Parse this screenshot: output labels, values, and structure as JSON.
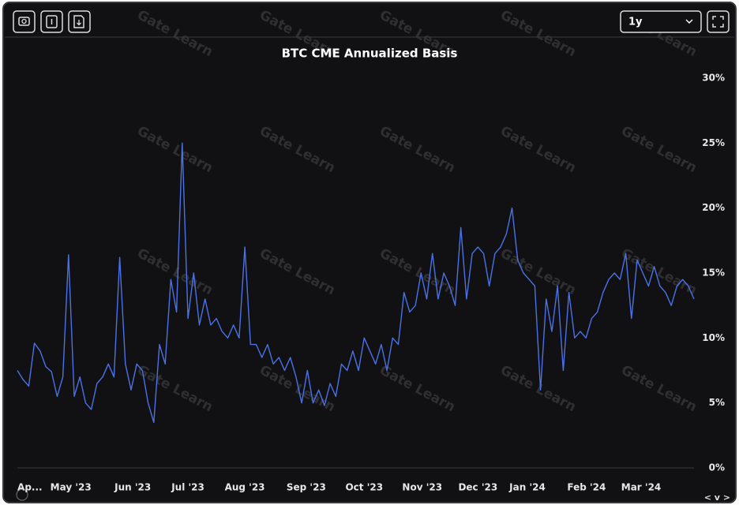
{
  "toolbar": {
    "range": "1y"
  },
  "watermark": "Gate Learn",
  "range_control": "< v >",
  "chart_data": {
    "type": "line",
    "title": "BTC CME Annualized Basis",
    "color": "#4a72e8",
    "values": [
      7.5,
      6.8,
      6.3,
      9.6,
      9.0,
      7.8,
      7.4,
      5.5,
      7.0,
      16.4,
      5.5,
      7.0,
      5.0,
      4.5,
      6.5,
      7.0,
      8.0,
      7.0,
      16.2,
      8.0,
      6.0,
      8.0,
      7.5,
      5.0,
      3.5,
      9.5,
      8.0,
      14.5,
      12.0,
      25.0,
      11.5,
      15.0,
      11.0,
      13.0,
      11.0,
      11.5,
      10.5,
      10.0,
      11.0,
      10.0,
      17.0,
      9.5,
      9.5,
      8.5,
      9.5,
      8.0,
      8.5,
      7.5,
      8.5,
      7.0,
      5.0,
      7.5,
      5.0,
      6.0,
      4.8,
      6.5,
      5.5,
      8.0,
      7.5,
      9.0,
      7.5,
      10.0,
      9.0,
      8.0,
      9.5,
      7.5,
      10.0,
      9.5,
      13.5,
      12.0,
      12.5,
      15.0,
      13.0,
      16.5,
      13.0,
      15.0,
      14.0,
      12.5,
      18.5,
      13.0,
      16.5,
      17.0,
      16.5,
      14.0,
      16.5,
      17.0,
      18.0,
      20.0,
      16.0,
      15.0,
      14.5,
      14.0,
      6.0,
      13.0,
      10.5,
      14.0,
      7.5,
      13.5,
      10.0,
      10.5,
      10.0,
      11.5,
      12.0,
      13.5,
      14.5,
      15.0,
      14.5,
      16.5,
      11.5,
      16.0,
      15.0,
      14.0,
      15.5,
      14.0,
      13.5,
      12.5,
      14.0,
      14.5,
      14.0,
      13.0
    ],
    "xlim": [
      0,
      119
    ],
    "xticks": [
      {
        "value": 2.2,
        "label": "Ap..."
      },
      {
        "value": 9.4,
        "label": "May '23"
      },
      {
        "value": 20.3,
        "label": "Jun '23"
      },
      {
        "value": 30,
        "label": "Jul '23"
      },
      {
        "value": 40,
        "label": "Aug '23"
      },
      {
        "value": 50.8,
        "label": "Sep '23"
      },
      {
        "value": 61,
        "label": "Oct '23"
      },
      {
        "value": 71.2,
        "label": "Nov '23"
      },
      {
        "value": 81,
        "label": "Dec '23"
      },
      {
        "value": 89.7,
        "label": "Jan '24"
      },
      {
        "value": 100.1,
        "label": "Feb '24"
      },
      {
        "value": 109.7,
        "label": "Mar '24"
      }
    ],
    "ylim": [
      0,
      30
    ],
    "yticks": [
      {
        "value": 0,
        "label": "0%"
      },
      {
        "value": 5,
        "label": "5%"
      },
      {
        "value": 10,
        "label": "10%"
      },
      {
        "value": 15,
        "label": "15%"
      },
      {
        "value": 20,
        "label": "20%"
      },
      {
        "value": 25,
        "label": "25%"
      },
      {
        "value": 30,
        "label": "30%"
      }
    ],
    "grid": false
  }
}
